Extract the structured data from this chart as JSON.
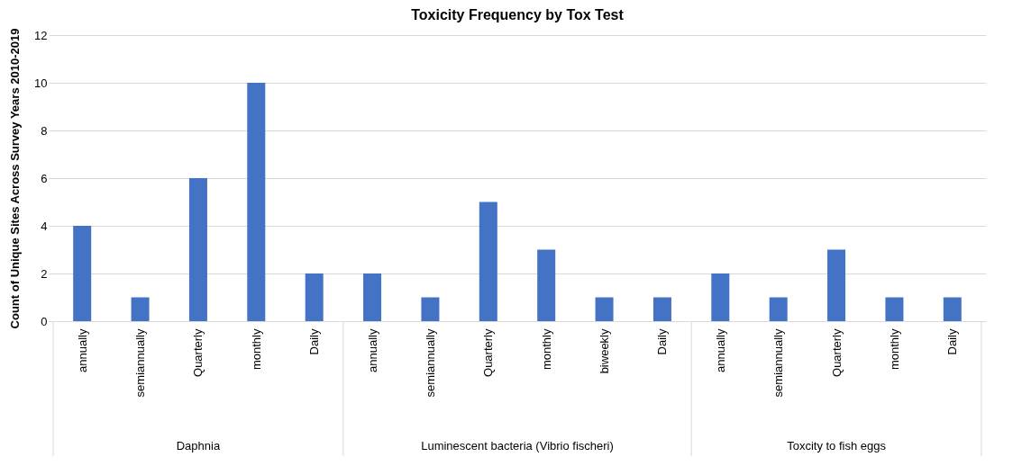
{
  "chart_data": {
    "type": "bar",
    "title": "Toxicity Frequency by Tox Test",
    "ylabel": "Count of Unique Sites Across  Survey Years 2010-2019",
    "categories": [
      "annually",
      "semiannually",
      "Quarterly",
      "monthly",
      "Daily",
      "annually",
      "semiannually",
      "Quarterly",
      "monthly",
      "biweekly",
      "Daily",
      "annually",
      "semiannually",
      "Quarterly",
      "monthly",
      "Daily"
    ],
    "values": [
      4,
      1,
      6,
      10,
      2,
      2,
      1,
      5,
      3,
      1,
      1,
      2,
      1,
      3,
      1,
      1
    ],
    "color": "#4472c4",
    "annotations": [
      "Daphnia",
      "Luminescent bacteria (Vibrio fischeri)",
      "Toxcity to fish eggs"
    ],
    "ylim": [
      0,
      12
    ],
    "yticks": [
      0,
      2,
      4,
      6,
      8,
      10,
      12
    ],
    "grid": "y"
  }
}
